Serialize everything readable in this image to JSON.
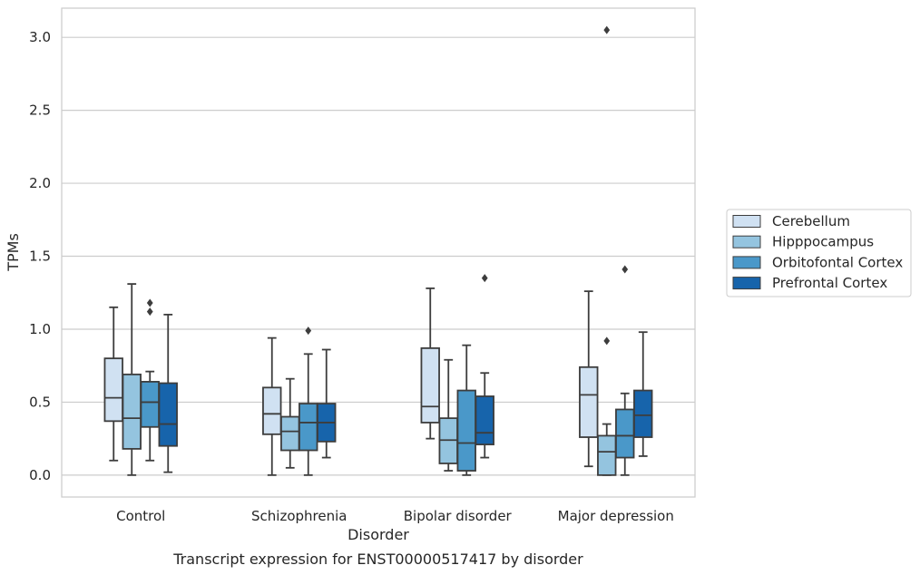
{
  "chart_data": {
    "type": "box",
    "title": "Transcript expression for ENST00000517417 by disorder",
    "xlabel": "Disorder",
    "ylabel": "TPMs",
    "ylim": [
      -0.15,
      3.2
    ],
    "yticks": [
      "0.0",
      "0.5",
      "1.0",
      "1.5",
      "2.0",
      "2.5",
      "3.0"
    ],
    "grid": "horizontal",
    "legend_position": "right",
    "categories": [
      "Control",
      "Schizophrenia",
      "Bipolar disorder",
      "Major depression"
    ],
    "series": [
      {
        "name": "Cerebellum",
        "color": "#d0e1f2",
        "boxes": [
          {
            "whisker_low": 0.1,
            "q1": 0.37,
            "median": 0.53,
            "q3": 0.8,
            "whisker_high": 1.15,
            "outliers": []
          },
          {
            "whisker_low": 0.0,
            "q1": 0.28,
            "median": 0.42,
            "q3": 0.6,
            "whisker_high": 0.94,
            "outliers": []
          },
          {
            "whisker_low": 0.25,
            "q1": 0.36,
            "median": 0.47,
            "q3": 0.87,
            "whisker_high": 1.28,
            "outliers": []
          },
          {
            "whisker_low": 0.06,
            "q1": 0.26,
            "median": 0.55,
            "q3": 0.74,
            "whisker_high": 1.26,
            "outliers": []
          }
        ]
      },
      {
        "name": "Hipppocampus",
        "color": "#94c4df",
        "boxes": [
          {
            "whisker_low": 0.0,
            "q1": 0.18,
            "median": 0.39,
            "q3": 0.69,
            "whisker_high": 1.31,
            "outliers": []
          },
          {
            "whisker_low": 0.05,
            "q1": 0.17,
            "median": 0.3,
            "q3": 0.4,
            "whisker_high": 0.66,
            "outliers": []
          },
          {
            "whisker_low": 0.03,
            "q1": 0.08,
            "median": 0.24,
            "q3": 0.39,
            "whisker_high": 0.79,
            "outliers": []
          },
          {
            "whisker_low": 0.0,
            "q1": 0.0,
            "median": 0.16,
            "q3": 0.27,
            "whisker_high": 0.35,
            "outliers": [
              0.92,
              3.05
            ]
          }
        ]
      },
      {
        "name": "Orbitofontal Cortex",
        "color": "#4a98c9",
        "boxes": [
          {
            "whisker_low": 0.1,
            "q1": 0.33,
            "median": 0.5,
            "q3": 0.64,
            "whisker_high": 0.71,
            "outliers": [
              1.12,
              1.18
            ]
          },
          {
            "whisker_low": 0.0,
            "q1": 0.17,
            "median": 0.36,
            "q3": 0.49,
            "whisker_high": 0.83,
            "outliers": [
              0.99
            ]
          },
          {
            "whisker_low": 0.0,
            "q1": 0.03,
            "median": 0.22,
            "q3": 0.58,
            "whisker_high": 0.89,
            "outliers": []
          },
          {
            "whisker_low": 0.0,
            "q1": 0.12,
            "median": 0.27,
            "q3": 0.45,
            "whisker_high": 0.56,
            "outliers": [
              1.41
            ]
          }
        ]
      },
      {
        "name": "Prefrontal Cortex",
        "color": "#1764ab",
        "boxes": [
          {
            "whisker_low": 0.02,
            "q1": 0.2,
            "median": 0.35,
            "q3": 0.63,
            "whisker_high": 1.1,
            "outliers": []
          },
          {
            "whisker_low": 0.12,
            "q1": 0.23,
            "median": 0.36,
            "q3": 0.49,
            "whisker_high": 0.86,
            "outliers": []
          },
          {
            "whisker_low": 0.12,
            "q1": 0.21,
            "median": 0.29,
            "q3": 0.54,
            "whisker_high": 0.7,
            "outliers": [
              1.35
            ]
          },
          {
            "whisker_low": 0.13,
            "q1": 0.26,
            "median": 0.41,
            "q3": 0.58,
            "whisker_high": 0.98,
            "outliers": []
          }
        ]
      }
    ]
  }
}
